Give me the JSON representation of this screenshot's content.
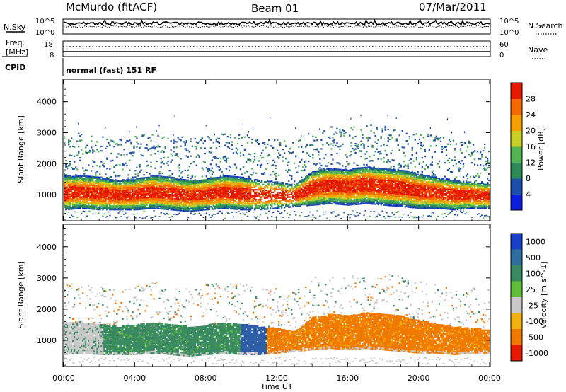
{
  "header": {
    "radar": "McMurdo (fitACF)",
    "beam": "Beam 01",
    "date": "07/Mar/2011"
  },
  "strip_panels": {
    "nsky_label": "N.Sky",
    "nsky_ticks": [
      "10^5",
      "10^0"
    ],
    "nsearch_label": "N.Search",
    "nsearch_ticks": [
      "10^5",
      "10^0"
    ],
    "freq_label_1": "Freq.",
    "freq_label_2": "[MHz]",
    "freq_ticks": [
      "18",
      "8"
    ],
    "nave_label": "Nave",
    "nave_ticks": [
      "60",
      "0"
    ],
    "cpid_label": "CPID",
    "cpid_text": "normal (fast) 151 RF"
  },
  "chart_data": [
    {
      "type": "heatmap",
      "title": "",
      "xlabel": "Time UT",
      "ylabel": "Slant Range [km]",
      "x_ticks": [
        "00:00",
        "04:00",
        "08:00",
        "12:00",
        "16:00",
        "20:00",
        "00:00"
      ],
      "x_range_hours": [
        0,
        24
      ],
      "y_ticks": [
        "1000",
        "2000",
        "3000",
        "4000"
      ],
      "ylim": [
        180,
        4700
      ],
      "colorbar_label": "Power [dB]",
      "colorbar_ticks": [
        "4",
        "8",
        "12",
        "16",
        "20",
        "24",
        "28"
      ],
      "colorbar_range": [
        0,
        32
      ],
      "colors": [
        "#0a1edc",
        "#1f4fae",
        "#2e8b57",
        "#54b454",
        "#c8d028",
        "#f4a000",
        "#f46a00",
        "#e61a00"
      ],
      "main_echo_band_km": [
        [
          0,
          650,
          1450
        ],
        [
          1,
          700,
          1450
        ],
        [
          2,
          650,
          1400
        ],
        [
          3,
          650,
          1300
        ],
        [
          4,
          650,
          1350
        ],
        [
          5,
          700,
          1450
        ],
        [
          6,
          650,
          1400
        ],
        [
          7,
          600,
          1300
        ],
        [
          8,
          650,
          1350
        ],
        [
          9,
          700,
          1450
        ],
        [
          10,
          650,
          1400
        ],
        [
          11,
          650,
          1300
        ],
        [
          12,
          700,
          1250
        ],
        [
          13,
          750,
          1150
        ],
        [
          14,
          800,
          1600
        ],
        [
          15,
          850,
          1700
        ],
        [
          16,
          800,
          1650
        ],
        [
          17,
          850,
          1750
        ],
        [
          18,
          800,
          1700
        ],
        [
          19,
          750,
          1650
        ],
        [
          20,
          700,
          1500
        ],
        [
          21,
          700,
          1400
        ],
        [
          22,
          650,
          1300
        ],
        [
          23,
          700,
          1250
        ],
        [
          24,
          700,
          1200
        ]
      ]
    },
    {
      "type": "heatmap",
      "title": "",
      "xlabel": "Time UT",
      "ylabel": "Slant Range [km]",
      "x_ticks": [
        "00:00",
        "04:00",
        "08:00",
        "12:00",
        "16:00",
        "20:00",
        "00:00"
      ],
      "x_range_hours": [
        0,
        24
      ],
      "y_ticks": [
        "1000",
        "2000",
        "3000",
        "4000"
      ],
      "ylim": [
        180,
        4700
      ],
      "colorbar_label": "Velocity [m s^-1]",
      "colorbar_ticks": [
        "1000",
        "500",
        "100",
        "25",
        "-25",
        "-100",
        "-500",
        "-1000"
      ],
      "colors": [
        "#1840c8",
        "#2f6fa0",
        "#3a8a62",
        "#5fbf3a",
        "#c8c8c8",
        "#f0b010",
        "#f07a00",
        "#e61a00"
      ],
      "segments": [
        {
          "t0": 0,
          "t1": 2.2,
          "class": "ground",
          "color": "#c8c8c8"
        },
        {
          "t0": 2.2,
          "t1": 10.0,
          "class": "positive",
          "color": "#3a8a62"
        },
        {
          "t0": 10.0,
          "t1": 11.4,
          "class": "strong-positive",
          "color": "#2f5ea8"
        },
        {
          "t0": 11.4,
          "t1": 24,
          "class": "negative",
          "color": "#f07a00"
        }
      ]
    }
  ]
}
